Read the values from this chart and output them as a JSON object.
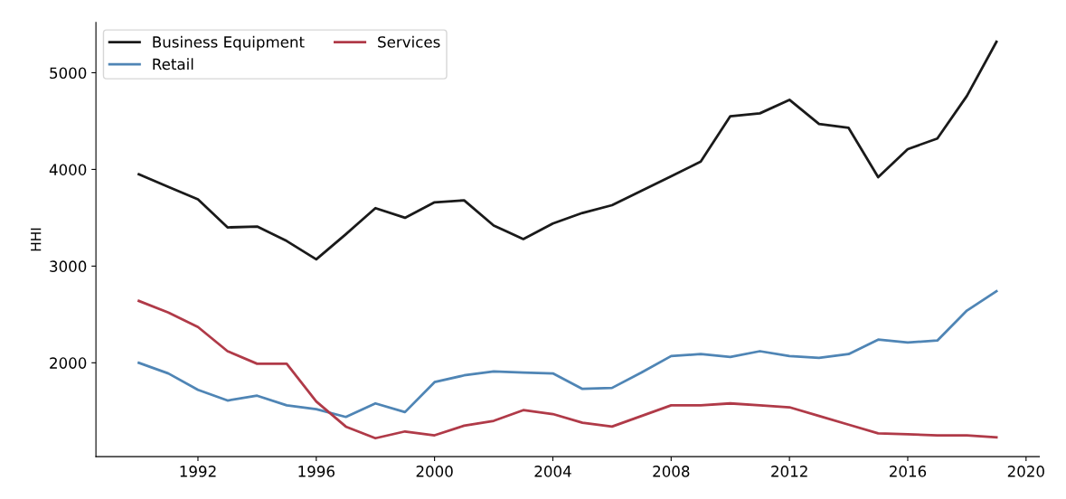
{
  "chart_data": {
    "type": "line",
    "ylabel": "HHI",
    "x": [
      1990,
      1991,
      1992,
      1993,
      1994,
      1995,
      1996,
      1997,
      1998,
      1999,
      2000,
      2001,
      2002,
      2003,
      2004,
      2005,
      2006,
      2007,
      2008,
      2009,
      2010,
      2011,
      2012,
      2013,
      2014,
      2015,
      2016,
      2017,
      2018,
      2019
    ],
    "series": [
      {
        "name": "Business Equipment",
        "color": "#1a1a1a",
        "values": [
          3950,
          3820,
          3690,
          3400,
          3410,
          3260,
          3070,
          3330,
          3600,
          3500,
          3660,
          3680,
          3420,
          3280,
          3440,
          3550,
          3630,
          3780,
          3930,
          4080,
          4550,
          4580,
          4720,
          4470,
          4430,
          3920,
          4210,
          4320,
          4760,
          5320
        ]
      },
      {
        "name": "Retail",
        "color": "#4f85b5",
        "values": [
          2000,
          1890,
          1720,
          1610,
          1660,
          1560,
          1520,
          1440,
          1580,
          1490,
          1800,
          1870,
          1910,
          1900,
          1890,
          1730,
          1740,
          1900,
          2070,
          2090,
          2060,
          2120,
          2070,
          2050,
          2090,
          2240,
          2210,
          2230,
          2540,
          2740
        ]
      },
      {
        "name": "Services",
        "color": "#b03a48",
        "values": [
          2640,
          2520,
          2370,
          2120,
          1990,
          1990,
          1600,
          1340,
          1220,
          1290,
          1250,
          1350,
          1400,
          1510,
          1470,
          1380,
          1340,
          1450,
          1560,
          1560,
          1580,
          1560,
          1540,
          1450,
          1360,
          1270,
          1260,
          1250,
          1250,
          1230
        ]
      }
    ],
    "xlim": [
      1988.55,
      2020.45
    ],
    "xticks": [
      1992,
      1996,
      2000,
      2004,
      2008,
      2012,
      2016,
      2020
    ],
    "ylim": [
      1030,
      5520
    ],
    "yticks": [
      2000,
      3000,
      4000,
      5000
    ],
    "grid": false,
    "legend": "top left",
    "marker": "none",
    "line_style": "solid"
  }
}
